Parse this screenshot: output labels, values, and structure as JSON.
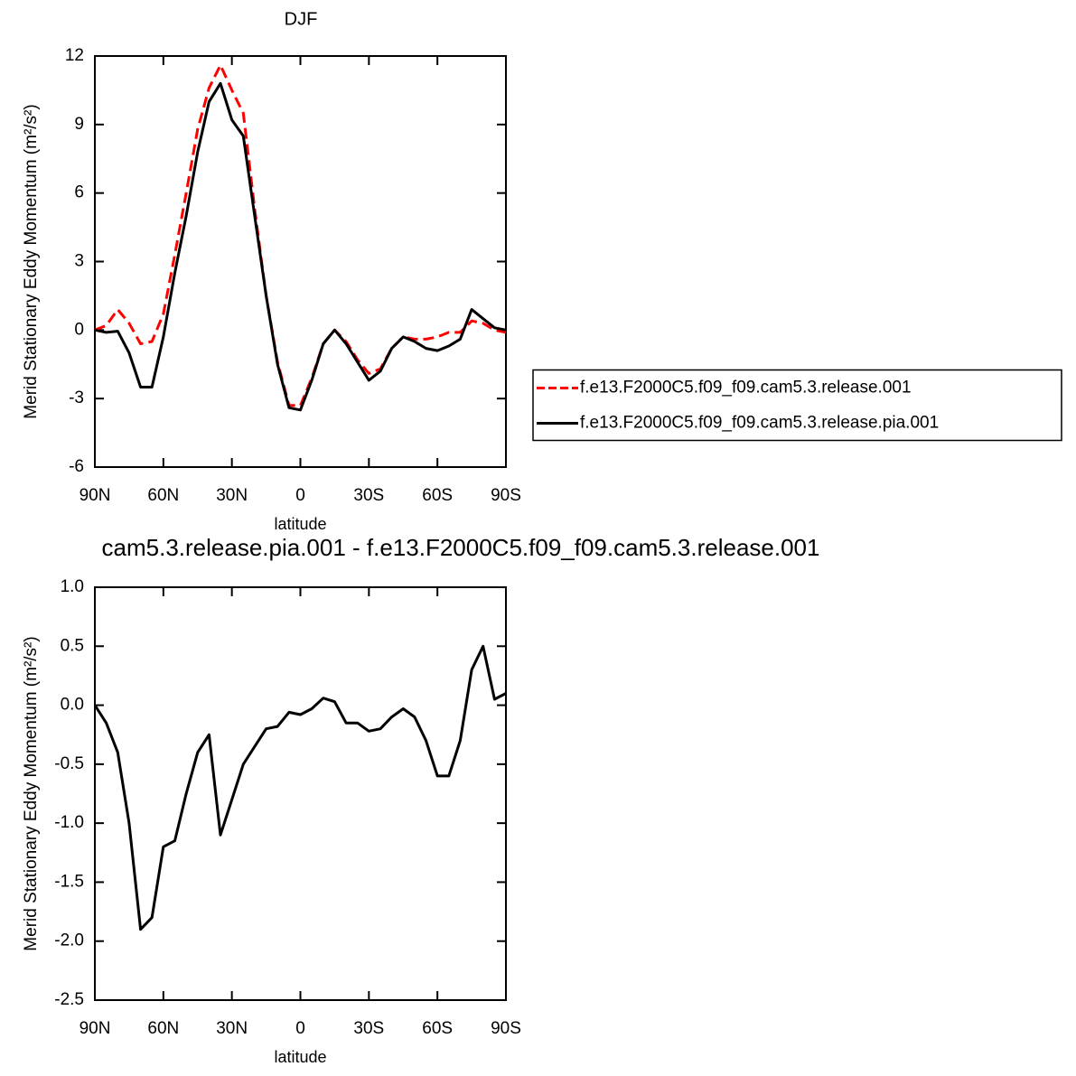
{
  "chart_data": [
    {
      "type": "line",
      "title": "DJF",
      "xlabel": "latitude",
      "ylabel": "Merid Stationary Eddy Momentum (m²/s²)",
      "x": [
        90,
        85,
        80,
        75,
        70,
        65,
        60,
        55,
        50,
        45,
        40,
        35,
        30,
        25,
        20,
        15,
        10,
        5,
        0,
        -5,
        -10,
        -15,
        -20,
        -25,
        -30,
        -35,
        -40,
        -45,
        -50,
        -55,
        -60,
        -65,
        -70,
        -75,
        -80,
        -85,
        -90
      ],
      "series": [
        {
          "name": "f.e13.F2000C5.f09_f09.cam5.3.release.001",
          "color": "#ff0000",
          "line_style": "dashed",
          "values": [
            0,
            0.2,
            0.9,
            0.3,
            -0.6,
            -0.5,
            0.7,
            3.3,
            6.0,
            8.8,
            10.6,
            11.6,
            10.5,
            9.5,
            5.3,
            1.5,
            -1.4,
            -3.3,
            -3.3,
            -2.1,
            -0.6,
            0.0,
            -0.5,
            -1.3,
            -1.9,
            -1.7,
            -0.8,
            -0.3,
            -0.4,
            -0.4,
            -0.3,
            -0.1,
            -0.1,
            0.4,
            0.3,
            0.0,
            -0.1
          ]
        },
        {
          "name": "f.e13.F2000C5.f09_f09.cam5.3.release.pia.001",
          "color": "#000000",
          "line_style": "solid",
          "values": [
            0,
            -0.1,
            -0.05,
            -1.0,
            -2.5,
            -2.5,
            -0.3,
            2.5,
            5.0,
            7.8,
            10.0,
            10.8,
            9.2,
            8.5,
            5.0,
            1.5,
            -1.5,
            -3.4,
            -3.5,
            -2.2,
            -0.6,
            0.0,
            -0.6,
            -1.4,
            -2.2,
            -1.8,
            -0.8,
            -0.3,
            -0.5,
            -0.8,
            -0.9,
            -0.7,
            -0.4,
            0.9,
            0.5,
            0.1,
            0
          ]
        }
      ],
      "xlim": [
        90,
        -90
      ],
      "xticks": [
        {
          "value": 90,
          "label": "90N"
        },
        {
          "value": 60,
          "label": "60N"
        },
        {
          "value": 30,
          "label": "30N"
        },
        0,
        {
          "value": -30,
          "label": "30S"
        },
        {
          "value": -60,
          "label": "60S"
        },
        {
          "value": -90,
          "label": "90S"
        }
      ],
      "ylim": [
        -6,
        12
      ],
      "yticks": [
        -6,
        -3,
        0,
        3,
        6,
        9,
        12
      ],
      "legend": "right"
    },
    {
      "type": "line",
      "title": "cam5.3.release.pia.001 - f.e13.F2000C5.f09_f09.cam5.3.release.001",
      "xlabel": "latitude",
      "ylabel": "Merid Stationary Eddy Momentum (m²/s²)",
      "x": [
        90,
        85,
        80,
        75,
        70,
        65,
        60,
        55,
        50,
        45,
        40,
        35,
        30,
        25,
        20,
        15,
        10,
        5,
        0,
        -5,
        -10,
        -15,
        -20,
        -25,
        -30,
        -35,
        -40,
        -45,
        -50,
        -55,
        -60,
        -65,
        -70,
        -75,
        -80,
        -85,
        -90
      ],
      "color": "#000000",
      "values": [
        0,
        -0.15,
        -0.4,
        -1.0,
        -1.9,
        -1.8,
        -1.2,
        -1.15,
        -0.75,
        -0.4,
        -0.25,
        -1.1,
        -0.8,
        -0.5,
        -0.35,
        -0.2,
        -0.18,
        -0.06,
        -0.08,
        -0.03,
        0.06,
        0.03,
        -0.15,
        -0.15,
        -0.22,
        -0.2,
        -0.1,
        -0.03,
        -0.1,
        -0.3,
        -0.6,
        -0.6,
        -0.3,
        0.3,
        0.5,
        0.05,
        0.1
      ],
      "xlim": [
        90,
        -90
      ],
      "xticks": [
        {
          "value": 90,
          "label": "90N"
        },
        {
          "value": 60,
          "label": "60N"
        },
        {
          "value": 30,
          "label": "30N"
        },
        0,
        {
          "value": -30,
          "label": "30S"
        },
        {
          "value": -60,
          "label": "60S"
        },
        {
          "value": -90,
          "label": "90S"
        }
      ],
      "ylim": [
        -2.5,
        1
      ],
      "yticks": [
        {
          "value": -2.5,
          "label": "-2.5"
        },
        {
          "value": -2,
          "label": "-2.0"
        },
        {
          "value": -1.5,
          "label": "-1.5"
        },
        {
          "value": -1,
          "label": "-1.0"
        },
        {
          "value": -0.5,
          "label": "-0.5"
        },
        {
          "value": 0,
          "label": "0.0"
        },
        {
          "value": 0.5,
          "label": "0.5"
        },
        {
          "value": 1,
          "label": "1.0"
        }
      ]
    }
  ]
}
